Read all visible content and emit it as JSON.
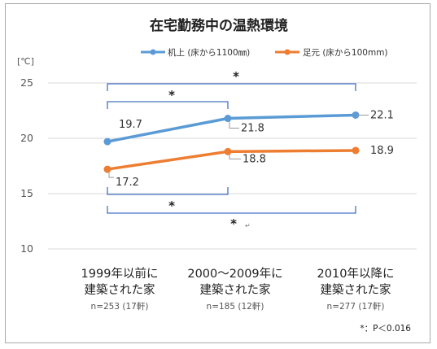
{
  "chart_data": {
    "type": "line",
    "title": "在宅勤務中の温熱環境",
    "unit_label": "[℃]",
    "ylim": [
      10,
      25
    ],
    "yticks": [
      10,
      15,
      20,
      25
    ],
    "grid": true,
    "legend_position": "top-right",
    "categories": [
      {
        "line1": "1999年以前に",
        "line2": "建築された家",
        "n": "n=253 (17軒)"
      },
      {
        "line1": "2000〜2009年に",
        "line2": "建築された家",
        "n": "n=185 (12軒)"
      },
      {
        "line1": "2010年以降に",
        "line2": "建築された家",
        "n": "n=277 (17軒)"
      }
    ],
    "series": [
      {
        "name": "机上 (床から1100㎜)",
        "color": "#5b9bd5",
        "values": [
          19.7,
          21.8,
          22.1
        ],
        "labels": [
          "19.7",
          "21.8",
          "22.1"
        ]
      },
      {
        "name": "足元 (床から100mm)",
        "color": "#ed7d31",
        "values": [
          17.2,
          18.8,
          18.9
        ],
        "labels": [
          "17.2",
          "18.8",
          "18.9"
        ]
      }
    ],
    "annotations": {
      "star": "*",
      "star_trail": "↵",
      "significance_note": "*：P＜0.016",
      "bracket_color": "#4472c4"
    }
  }
}
